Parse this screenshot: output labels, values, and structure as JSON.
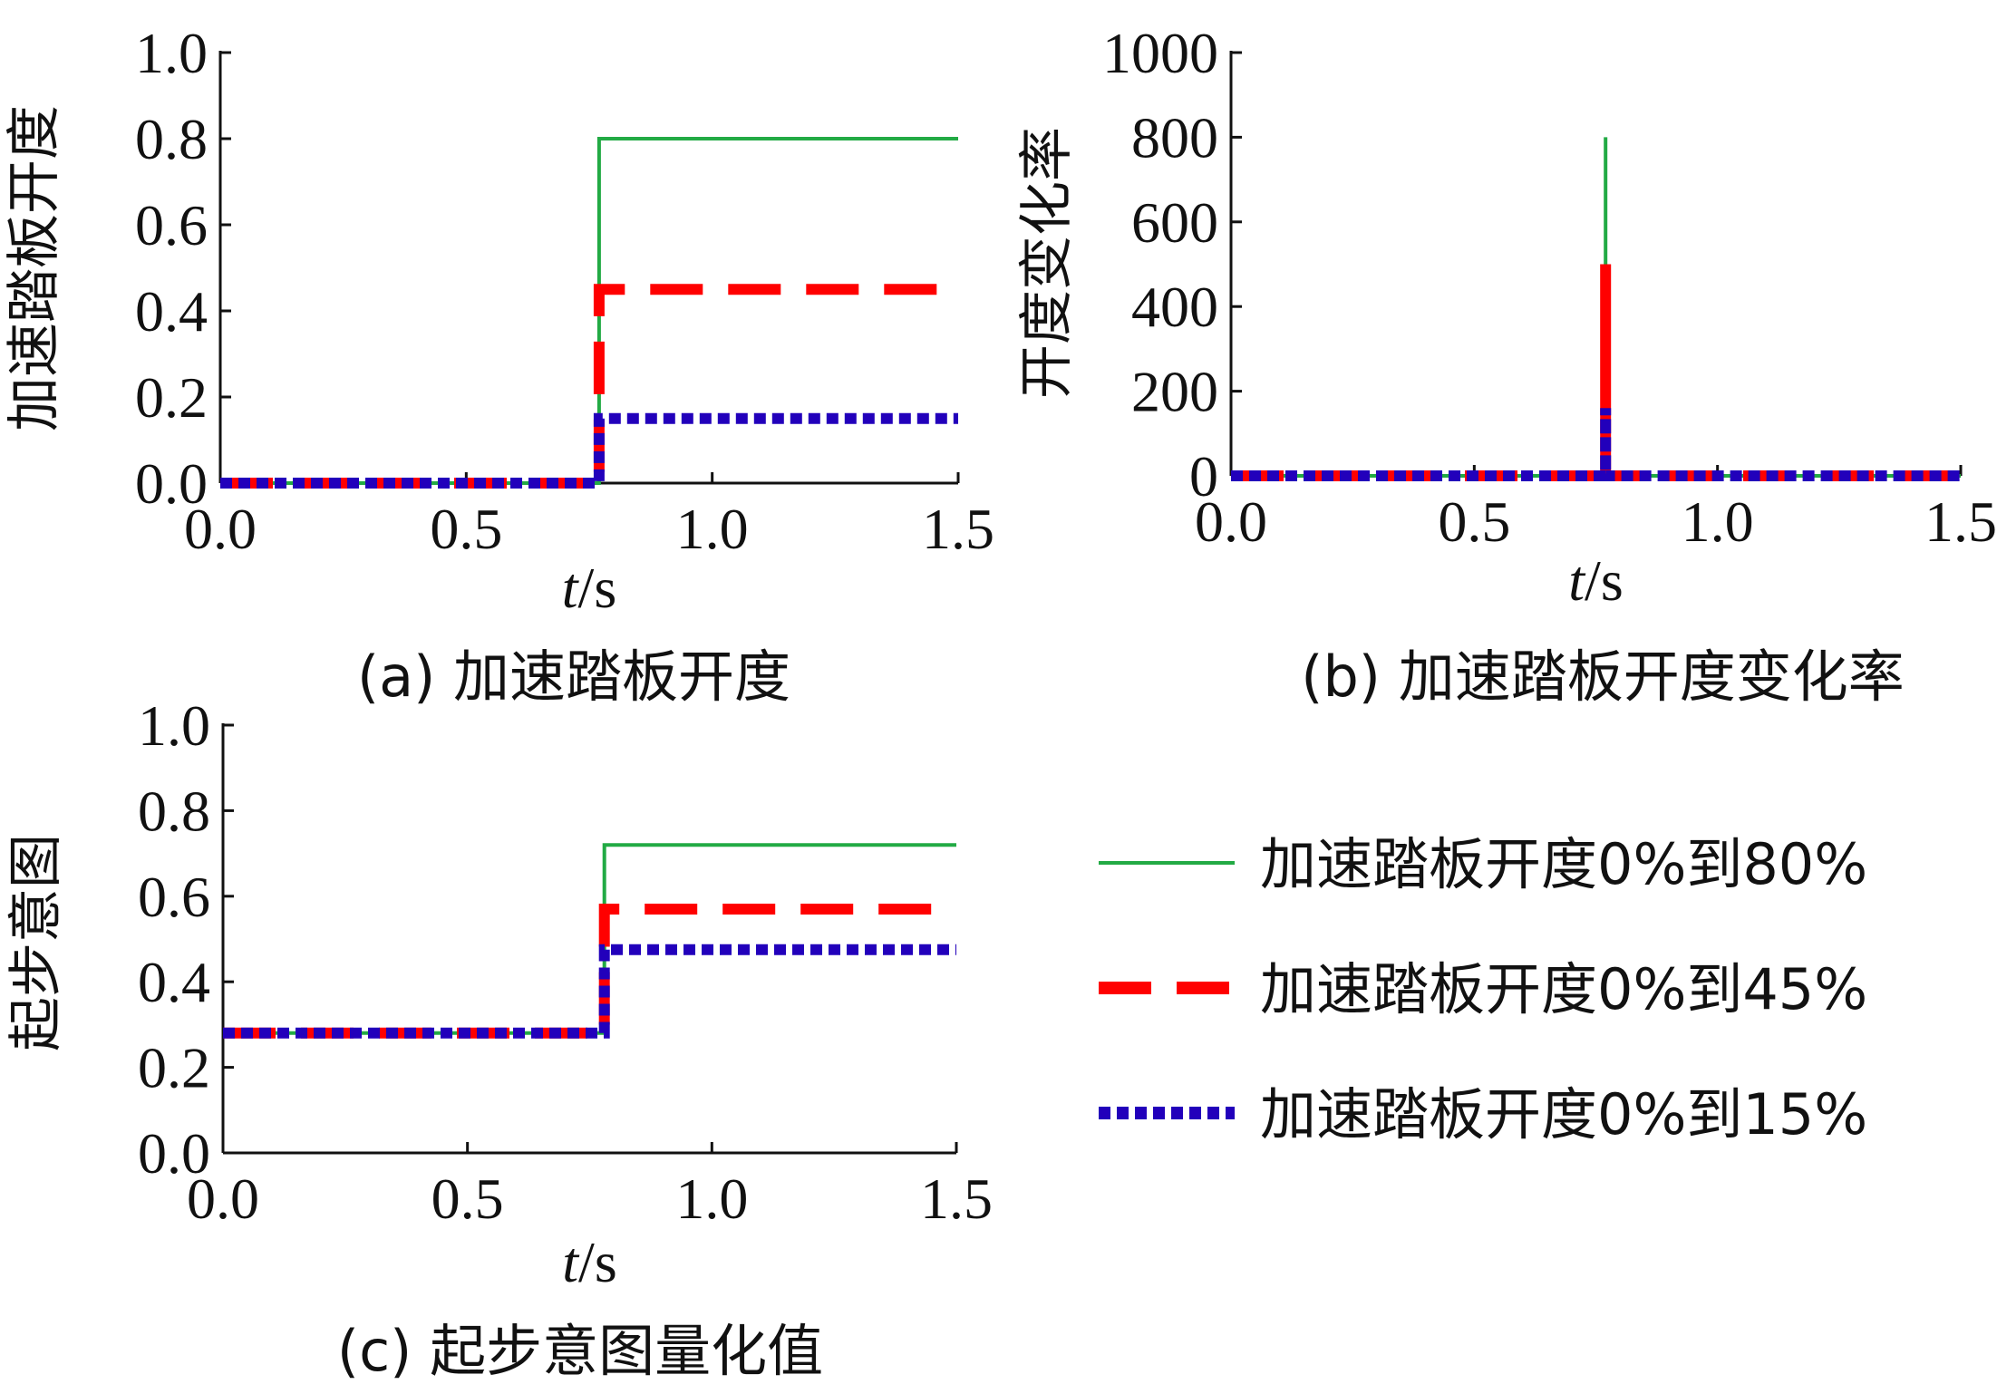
{
  "chart_data": [
    {
      "id": "a",
      "type": "line",
      "caption": "(a) 加速踏板开度",
      "ylabel": "加速踏板开度",
      "xlabel_italic": "t",
      "xlabel_unit": "/s",
      "xlim": [
        0,
        1.5
      ],
      "ylim": [
        0,
        1.0
      ],
      "xticks": [
        "0.0",
        "0.5",
        "1.0",
        "1.5"
      ],
      "yticks": [
        "0.0",
        "0.2",
        "0.4",
        "0.6",
        "0.8",
        "1.0"
      ],
      "series": [
        {
          "name": "加速踏板开度0%到80%",
          "x": [
            0,
            0.77,
            0.77,
            1.5
          ],
          "y": [
            0,
            0,
            0.8,
            0.8
          ]
        },
        {
          "name": "加速踏板开度0%到45%",
          "x": [
            0,
            0.77,
            0.77,
            1.5
          ],
          "y": [
            0,
            0,
            0.45,
            0.45
          ]
        },
        {
          "name": "加速踏板开度0%到15%",
          "x": [
            0,
            0.77,
            0.77,
            1.5
          ],
          "y": [
            0,
            0,
            0.15,
            0.15
          ]
        }
      ]
    },
    {
      "id": "b",
      "type": "line",
      "caption": "(b) 加速踏板开度变化率",
      "ylabel": "开度变化率",
      "xlabel_italic": "t",
      "xlabel_unit": "/s",
      "xlim": [
        0,
        1.5
      ],
      "ylim": [
        0,
        1000
      ],
      "xticks": [
        "0.0",
        "0.5",
        "1.0",
        "1.5"
      ],
      "yticks": [
        "0",
        "200",
        "400",
        "600",
        "800",
        "1000"
      ],
      "series": [
        {
          "name": "加速踏板开度0%到80%",
          "x": [
            0,
            0.77,
            0.77,
            0.77,
            1.5
          ],
          "y": [
            0,
            0,
            800,
            0,
            0
          ]
        },
        {
          "name": "加速踏板开度0%到45%",
          "x": [
            0,
            0.77,
            0.77,
            0.77,
            1.5
          ],
          "y": [
            0,
            0,
            500,
            0,
            0
          ]
        },
        {
          "name": "加速踏板开度0%到15%",
          "x": [
            0,
            0.77,
            0.77,
            0.77,
            1.5
          ],
          "y": [
            0,
            0,
            160,
            0,
            0
          ]
        }
      ]
    },
    {
      "id": "c",
      "type": "line",
      "caption": "(c) 起步意图量化值",
      "ylabel": "起步意图",
      "xlabel_italic": "t",
      "xlabel_unit": "/s",
      "xlim": [
        0,
        1.5
      ],
      "ylim": [
        0,
        1.0
      ],
      "xticks": [
        "0.0",
        "0.5",
        "1.0",
        "1.5"
      ],
      "yticks": [
        "0.0",
        "0.2",
        "0.4",
        "0.6",
        "0.8",
        "1.0"
      ],
      "series": [
        {
          "name": "加速踏板开度0%到80%",
          "x": [
            0,
            0.78,
            0.78,
            1.5
          ],
          "y": [
            0.28,
            0.28,
            0.72,
            0.72
          ]
        },
        {
          "name": "加速踏板开度0%到45%",
          "x": [
            0,
            0.78,
            0.78,
            1.5
          ],
          "y": [
            0.28,
            0.28,
            0.57,
            0.57
          ]
        },
        {
          "name": "加速踏板开度0%到15%",
          "x": [
            0,
            0.78,
            0.78,
            1.5
          ],
          "y": [
            0.28,
            0.28,
            0.475,
            0.475
          ]
        }
      ]
    }
  ],
  "legend": {
    "entries": [
      {
        "label": "加速踏板开度0%到80%",
        "color": "#22aa44",
        "style": "solid"
      },
      {
        "label": "加速踏板开度0%到45%",
        "color": "#ff0000",
        "style": "dashed"
      },
      {
        "label": "加速踏板开度0%到15%",
        "color": "#2200bb",
        "style": "dotted"
      }
    ]
  }
}
